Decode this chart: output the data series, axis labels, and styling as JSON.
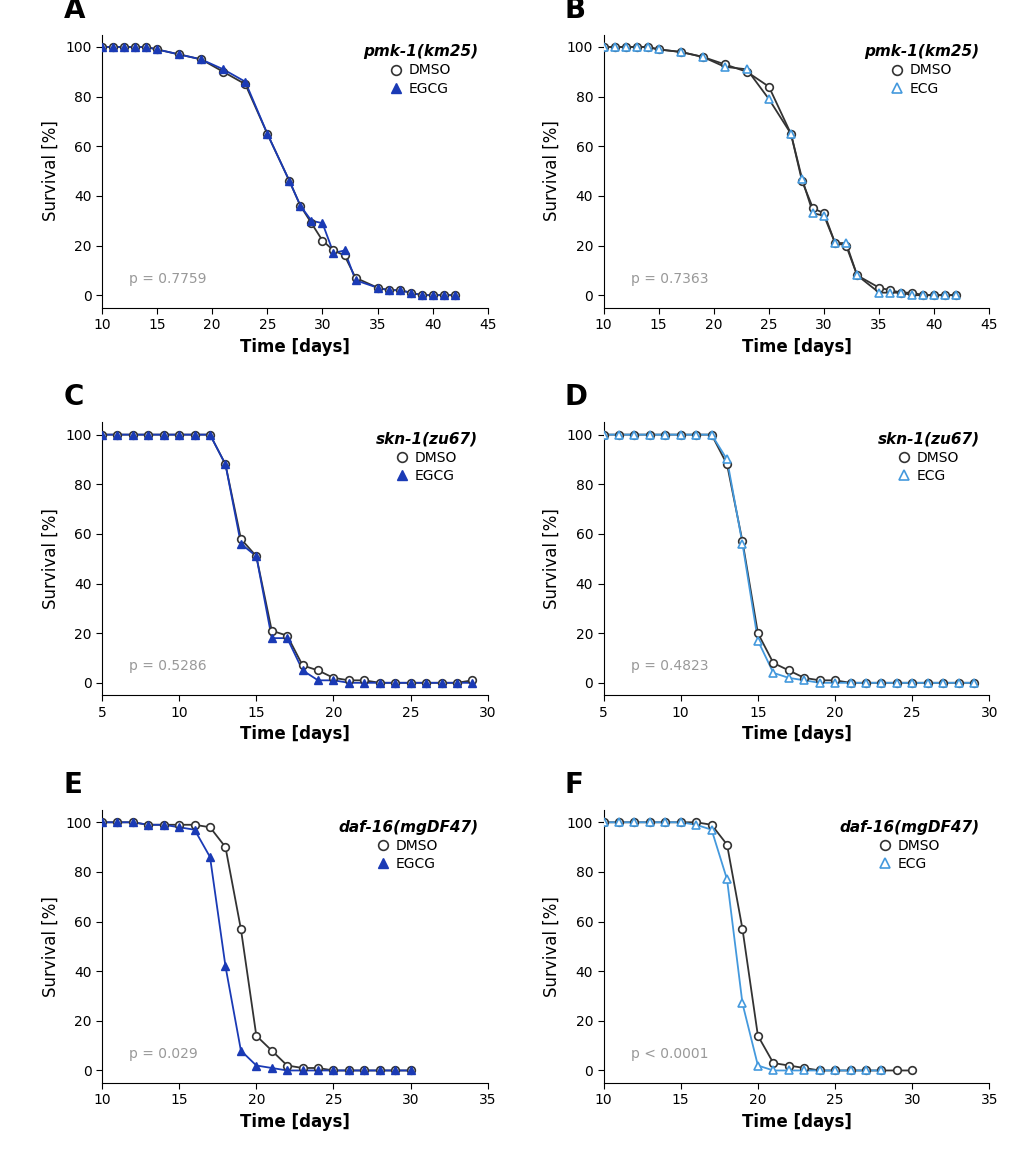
{
  "panels": [
    {
      "label": "A",
      "title": "pmk-1(km25)",
      "treatment": "EGCG",
      "p_value": "p = 0.7759",
      "xlim": [
        10,
        45
      ],
      "xticks": [
        10,
        15,
        20,
        25,
        30,
        35,
        40,
        45
      ],
      "ylim": [
        -5,
        105
      ],
      "yticks": [
        0,
        20,
        40,
        60,
        80,
        100
      ],
      "dmso_x": [
        10,
        11,
        12,
        13,
        14,
        15,
        17,
        19,
        21,
        23,
        25,
        27,
        28,
        29,
        30,
        31,
        32,
        33,
        35,
        36,
        37,
        38,
        39,
        40,
        41,
        42
      ],
      "dmso_y": [
        100,
        100,
        100,
        100,
        100,
        99,
        97,
        95,
        90,
        85,
        65,
        46,
        36,
        29,
        22,
        18,
        16,
        7,
        3,
        2,
        2,
        1,
        0,
        0,
        0,
        0
      ],
      "drug_x": [
        10,
        11,
        12,
        13,
        14,
        15,
        17,
        19,
        21,
        23,
        25,
        27,
        28,
        29,
        30,
        31,
        32,
        33,
        35,
        36,
        37,
        38,
        39,
        40,
        41,
        42
      ],
      "drug_y": [
        100,
        100,
        100,
        100,
        100,
        99,
        97,
        95,
        91,
        86,
        65,
        46,
        36,
        30,
        29,
        17,
        18,
        6,
        3,
        2,
        2,
        1,
        0,
        0,
        0,
        0
      ],
      "dmso_color": "#333333",
      "drug_color": "#1a3ab5",
      "drug_line_color": "#1a3ab5",
      "ecg_open_triangle": false
    },
    {
      "label": "B",
      "title": "pmk-1(km25)",
      "treatment": "ECG",
      "p_value": "p = 0.7363",
      "xlim": [
        10,
        45
      ],
      "xticks": [
        10,
        15,
        20,
        25,
        30,
        35,
        40,
        45
      ],
      "ylim": [
        -5,
        105
      ],
      "yticks": [
        0,
        20,
        40,
        60,
        80,
        100
      ],
      "dmso_x": [
        10,
        11,
        12,
        13,
        14,
        15,
        17,
        19,
        21,
        23,
        25,
        27,
        28,
        29,
        30,
        31,
        32,
        33,
        35,
        36,
        37,
        38,
        39,
        40,
        41,
        42
      ],
      "dmso_y": [
        100,
        100,
        100,
        100,
        100,
        99,
        98,
        96,
        93,
        90,
        84,
        65,
        46,
        35,
        33,
        21,
        20,
        8,
        3,
        2,
        1,
        1,
        0,
        0,
        0,
        0
      ],
      "drug_x": [
        10,
        11,
        12,
        13,
        14,
        15,
        17,
        19,
        21,
        23,
        25,
        27,
        28,
        29,
        30,
        31,
        32,
        33,
        35,
        36,
        37,
        38,
        39,
        40,
        41,
        42
      ],
      "drug_y": [
        100,
        100,
        100,
        100,
        100,
        99,
        98,
        96,
        92,
        91,
        79,
        65,
        47,
        33,
        32,
        21,
        21,
        8,
        1,
        1,
        1,
        0,
        0,
        0,
        0,
        0
      ],
      "dmso_color": "#333333",
      "drug_color": "#4499dd",
      "drug_line_color": "#333333",
      "ecg_open_triangle": true
    },
    {
      "label": "C",
      "title": "skn-1(zu67)",
      "treatment": "EGCG",
      "p_value": "p = 0.5286",
      "xlim": [
        5,
        30
      ],
      "xticks": [
        5,
        10,
        15,
        20,
        25,
        30
      ],
      "ylim": [
        -5,
        105
      ],
      "yticks": [
        0,
        20,
        40,
        60,
        80,
        100
      ],
      "dmso_x": [
        5,
        6,
        7,
        8,
        9,
        10,
        11,
        12,
        13,
        14,
        15,
        16,
        17,
        18,
        19,
        20,
        21,
        22,
        23,
        24,
        25,
        26,
        27,
        28,
        29
      ],
      "dmso_y": [
        100,
        100,
        100,
        100,
        100,
        100,
        100,
        100,
        88,
        58,
        51,
        21,
        19,
        7,
        5,
        2,
        1,
        1,
        0,
        0,
        0,
        0,
        0,
        0,
        1
      ],
      "drug_x": [
        5,
        6,
        7,
        8,
        9,
        10,
        11,
        12,
        13,
        14,
        15,
        16,
        17,
        18,
        19,
        20,
        21,
        22,
        23,
        24,
        25,
        26,
        27,
        28,
        29
      ],
      "drug_y": [
        100,
        100,
        100,
        100,
        100,
        100,
        100,
        100,
        88,
        56,
        51,
        18,
        18,
        5,
        1,
        1,
        0,
        0,
        0,
        0,
        0,
        0,
        0,
        0,
        0
      ],
      "dmso_color": "#333333",
      "drug_color": "#1a3ab5",
      "drug_line_color": "#1a3ab5",
      "ecg_open_triangle": false
    },
    {
      "label": "D",
      "title": "skn-1(zu67)",
      "treatment": "ECG",
      "p_value": "p = 0.4823",
      "xlim": [
        5,
        30
      ],
      "xticks": [
        5,
        10,
        15,
        20,
        25,
        30
      ],
      "ylim": [
        -5,
        105
      ],
      "yticks": [
        0,
        20,
        40,
        60,
        80,
        100
      ],
      "dmso_x": [
        5,
        6,
        7,
        8,
        9,
        10,
        11,
        12,
        13,
        14,
        15,
        16,
        17,
        18,
        19,
        20,
        21,
        22,
        23,
        24,
        25,
        26,
        27,
        28,
        29
      ],
      "dmso_y": [
        100,
        100,
        100,
        100,
        100,
        100,
        100,
        100,
        88,
        57,
        20,
        8,
        5,
        2,
        1,
        1,
        0,
        0,
        0,
        0,
        0,
        0,
        0,
        0,
        0
      ],
      "drug_x": [
        5,
        6,
        7,
        8,
        9,
        10,
        11,
        12,
        13,
        14,
        15,
        16,
        17,
        18,
        19,
        20,
        21,
        22,
        23,
        24,
        25,
        26,
        27,
        28,
        29
      ],
      "drug_y": [
        100,
        100,
        100,
        100,
        100,
        100,
        100,
        100,
        90,
        56,
        17,
        4,
        2,
        1,
        0,
        0,
        0,
        0,
        0,
        0,
        0,
        0,
        0,
        0,
        0
      ],
      "dmso_color": "#333333",
      "drug_color": "#4499dd",
      "drug_line_color": "#4499dd",
      "ecg_open_triangle": true
    },
    {
      "label": "E",
      "title": "daf-16(mgDF47)",
      "treatment": "EGCG",
      "p_value": "p = 0.029",
      "xlim": [
        10,
        35
      ],
      "xticks": [
        10,
        15,
        20,
        25,
        30,
        35
      ],
      "ylim": [
        -5,
        105
      ],
      "yticks": [
        0,
        20,
        40,
        60,
        80,
        100
      ],
      "dmso_x": [
        10,
        11,
        12,
        13,
        14,
        15,
        16,
        17,
        18,
        19,
        20,
        21,
        22,
        23,
        24,
        25,
        26,
        27,
        28,
        29,
        30
      ],
      "dmso_y": [
        100,
        100,
        100,
        99,
        99,
        99,
        99,
        98,
        90,
        57,
        14,
        8,
        2,
        1,
        1,
        0,
        0,
        0,
        0,
        0,
        0
      ],
      "drug_x": [
        10,
        11,
        12,
        13,
        14,
        15,
        16,
        17,
        18,
        19,
        20,
        21,
        22,
        23,
        24,
        25,
        26,
        27,
        28,
        29,
        30
      ],
      "drug_y": [
        100,
        100,
        100,
        99,
        99,
        98,
        97,
        86,
        42,
        8,
        2,
        1,
        0,
        0,
        0,
        0,
        0,
        0,
        0,
        0,
        0
      ],
      "dmso_color": "#333333",
      "drug_color": "#1a3ab5",
      "drug_line_color": "#1a3ab5",
      "ecg_open_triangle": false
    },
    {
      "label": "F",
      "title": "daf-16(mgDF47)",
      "treatment": "ECG",
      "p_value": "p < 0.0001",
      "xlim": [
        10,
        35
      ],
      "xticks": [
        10,
        15,
        20,
        25,
        30,
        35
      ],
      "ylim": [
        -5,
        105
      ],
      "yticks": [
        0,
        20,
        40,
        60,
        80,
        100
      ],
      "dmso_x": [
        10,
        11,
        12,
        13,
        14,
        15,
        16,
        17,
        18,
        19,
        20,
        21,
        22,
        23,
        24,
        25,
        26,
        27,
        28,
        29,
        30
      ],
      "dmso_y": [
        100,
        100,
        100,
        100,
        100,
        100,
        100,
        99,
        91,
        57,
        14,
        3,
        2,
        1,
        0,
        0,
        0,
        0,
        0,
        0,
        0
      ],
      "drug_x": [
        10,
        11,
        12,
        13,
        14,
        15,
        16,
        17,
        18,
        19,
        20,
        21,
        22,
        23,
        24,
        25,
        26,
        27,
        28
      ],
      "drug_y": [
        100,
        100,
        100,
        100,
        100,
        100,
        99,
        97,
        77,
        27,
        2,
        0,
        0,
        0,
        0,
        0,
        0,
        0,
        0
      ],
      "dmso_color": "#333333",
      "drug_color": "#4499dd",
      "drug_line_color": "#4499dd",
      "ecg_open_triangle": true
    }
  ],
  "ylabel": "Survival [%]",
  "xlabel": "Time [days]",
  "bg_color": "#ffffff",
  "p_text_color": "#999999",
  "label_fontsize": 20,
  "axis_label_fontsize": 12,
  "tick_fontsize": 10,
  "legend_title_fontsize": 11,
  "legend_fontsize": 10,
  "p_fontsize": 10
}
